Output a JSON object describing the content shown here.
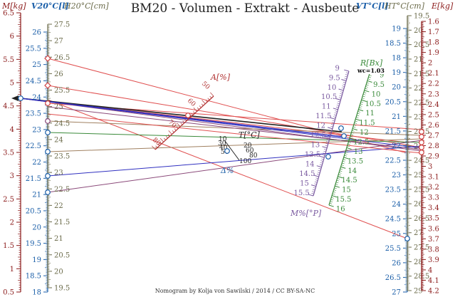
{
  "title": "BM20 - Volumen - Extrakt - Ausbeute",
  "credit": "Nomogram by Kolja von Sawilski / 2014 / CC BY-SA-NC",
  "labels": {
    "m_kg": "M[kg]",
    "v20": "V20°C[l]",
    "h20": "H20°C[cm]",
    "vt": "VT°C[l]",
    "ht": "HT°C[cm]",
    "e_kg": "E[kg]",
    "a_pct": "A[%]",
    "t": "T[°C]",
    "delta_pct": "Δ%",
    "m_pct": "M%[°P]",
    "r_bx": "R[Bx]",
    "wc": "wc=1.03"
  },
  "scales": {
    "m_kg": {
      "ticks": [
        "6.5",
        "6",
        "5.5",
        "5",
        "4.5",
        "4",
        "3.5",
        "3",
        "2.5",
        "2",
        "1.5",
        "1",
        "0.5"
      ],
      "color": "#8b1a1a"
    },
    "v20": {
      "ticks": [
        "26",
        "25.5",
        "25",
        "24.5",
        "24",
        "23.5",
        "23",
        "22.5",
        "22",
        "21.5",
        "21",
        "20.5",
        "20",
        "19.5",
        "19",
        "18.5",
        "18"
      ],
      "color": "#1a5ea8"
    },
    "h20": {
      "ticks": [
        "27.5",
        "27",
        "26.5",
        "26",
        "25.5",
        "25",
        "24.5",
        "24",
        "23.5",
        "23",
        "22.5",
        "22",
        "21.5",
        "21",
        "20.5",
        "20",
        "19.5"
      ],
      "color": "#6b6b4a"
    },
    "vt": {
      "ticks": [
        "19",
        "18.5",
        "18",
        "19",
        "20",
        "20.5",
        "21",
        "21.5",
        "22",
        "22.5",
        "23",
        "23.5",
        "24",
        "24.5",
        "25",
        "25.5",
        "26",
        "26.5",
        "27"
      ],
      "color": "#1a5ea8"
    },
    "ht": {
      "ticks": [
        "19.5",
        "20",
        "20.5",
        "21",
        "21.5",
        "22",
        "22.5",
        "23",
        "23.5",
        "24",
        "24.5",
        "25",
        "25.5",
        "26",
        "26.5",
        "27",
        "27.5",
        "28",
        "28.5",
        "29"
      ],
      "color": "#6b6b4a"
    },
    "e_kg": {
      "ticks": [
        "1.6",
        "1.7",
        "1.8",
        "1.9",
        "2",
        "2.1",
        "2.2",
        "2.3",
        "2.4",
        "2.5",
        "2.6",
        "2.7",
        "2.8",
        "2.9",
        "3",
        "3.1",
        "3.2",
        "3.3",
        "3.4",
        "3.5",
        "3.6",
        "3.7",
        "3.8",
        "3.9",
        "4",
        "4.1",
        "4.2"
      ],
      "color": "#8b1a1a"
    },
    "a_pct": {
      "ticks": [
        "50",
        "60",
        "70",
        "80"
      ],
      "color": "#b03030"
    },
    "t": {
      "ticks": [
        "10",
        "20",
        "30",
        "40",
        "50",
        "60",
        "80",
        "100"
      ],
      "color": "#222222"
    },
    "m_pct": {
      "ticks": [
        "9",
        "9.5",
        "10",
        "10.5",
        "11",
        "11.5",
        "12",
        "12.5",
        "13",
        "13.5",
        "14",
        "14.5",
        "15",
        "15.5"
      ],
      "color": "#7a5aa0"
    },
    "r_bx": {
      "ticks": [
        "9",
        "9.5",
        "10",
        "10.5",
        "11",
        "11.5",
        "12",
        "12.5",
        "13",
        "13.5",
        "14",
        "14.5",
        "15",
        "15.5",
        "16"
      ],
      "color": "#3a8a3a"
    }
  },
  "colors": {
    "red_line": "#e05050",
    "purple_line": "#8b4a7a",
    "blue_line": "#3030c0",
    "green_line": "#3a8a3a",
    "olive_line": "#a08060"
  }
}
